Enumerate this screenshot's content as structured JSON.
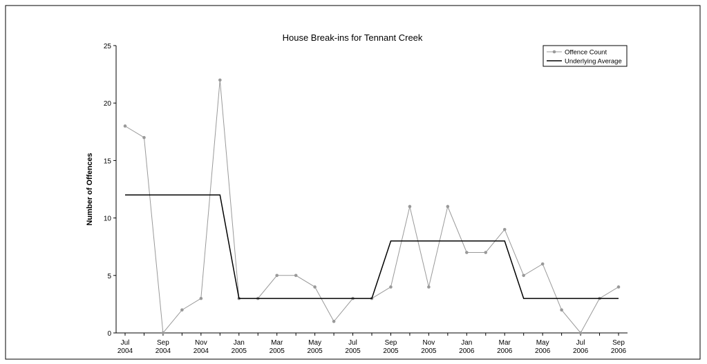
{
  "chart_data": {
    "type": "line",
    "title": "House Break-ins for Tennant Creek",
    "ylabel": "Number of Offences",
    "xlabel": "",
    "ylim": [
      0,
      25
    ],
    "yticks": [
      0,
      5,
      10,
      15,
      20,
      25
    ],
    "x": [
      "Jul 2004",
      "Aug 2004",
      "Sep 2004",
      "Oct 2004",
      "Nov 2004",
      "Dec 2004",
      "Jan 2005",
      "Feb 2005",
      "Mar 2005",
      "Apr 2005",
      "May 2005",
      "Jun 2005",
      "Jul 2005",
      "Aug 2005",
      "Sep 2005",
      "Oct 2005",
      "Nov 2005",
      "Dec 2005",
      "Jan 2006",
      "Feb 2006",
      "Mar 2006",
      "Apr 2006",
      "May 2006",
      "Jun 2006",
      "Jul 2006",
      "Aug 2006",
      "Sep 2006"
    ],
    "xtick_labels": [
      {
        "month": "Jul",
        "year": "2004",
        "index": 0
      },
      {
        "month": "Sep",
        "year": "2004",
        "index": 2
      },
      {
        "month": "Nov",
        "year": "2004",
        "index": 4
      },
      {
        "month": "Jan",
        "year": "2005",
        "index": 6
      },
      {
        "month": "Mar",
        "year": "2005",
        "index": 8
      },
      {
        "month": "May",
        "year": "2005",
        "index": 10
      },
      {
        "month": "Jul",
        "year": "2005",
        "index": 12
      },
      {
        "month": "Sep",
        "year": "2005",
        "index": 14
      },
      {
        "month": "Nov",
        "year": "2005",
        "index": 16
      },
      {
        "month": "Jan",
        "year": "2006",
        "index": 18
      },
      {
        "month": "Mar",
        "year": "2006",
        "index": 20
      },
      {
        "month": "May",
        "year": "2006",
        "index": 22
      },
      {
        "month": "Jul",
        "year": "2006",
        "index": 24
      },
      {
        "month": "Sep",
        "year": "2006",
        "index": 26
      }
    ],
    "series": [
      {
        "name": "Offence Count",
        "color": "#999999",
        "marker": "circle",
        "values": [
          18,
          17,
          0,
          2,
          3,
          22,
          3,
          3,
          5,
          5,
          4,
          1,
          3,
          3,
          4,
          11,
          4,
          11,
          7,
          7,
          9,
          5,
          6,
          2,
          0,
          3,
          4
        ]
      },
      {
        "name": "Underlying Average",
        "color": "#000000",
        "marker": "none",
        "values": [
          12,
          12,
          12,
          12,
          12,
          12,
          3,
          3,
          3,
          3,
          3,
          3,
          3,
          3,
          8,
          8,
          8,
          8,
          8,
          8,
          8,
          3,
          3,
          3,
          3,
          3,
          3
        ]
      }
    ],
    "grid": false,
    "legend_position": "top-right"
  }
}
